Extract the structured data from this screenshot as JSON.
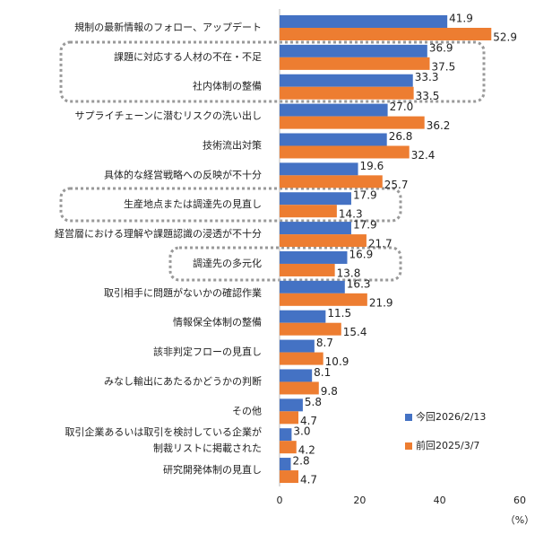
{
  "chart_data": {
    "type": "bar",
    "orientation": "horizontal",
    "categories": [
      "規制の最新情報のフォロー、アップデート",
      "課題に対応する人材の不在・不足",
      "社内体制の整備",
      "サプライチェーンに潜むリスクの洗い出し",
      "技術流出対策",
      "具体的な経営戦略への反映が不十分",
      "生産地点または調達先の見直し",
      "経営層における理解や課題認識の浸透が不十分",
      "調達先の多元化",
      "取引相手に問題がないかの確認作業",
      "情報保全体制の整備",
      "該非判定フローの見直し",
      "みなし輸出にあたるかどうかの判断",
      "その他",
      "取引企業あるいは取引を検討している企業が\n制裁リストに掲載された",
      "研究開発体制の見直し"
    ],
    "series": [
      {
        "name": "今回2026/2/13",
        "color": "#4472c4",
        "values": [
          41.9,
          36.9,
          33.3,
          27.0,
          26.8,
          19.6,
          17.9,
          17.9,
          16.9,
          16.3,
          11.5,
          8.7,
          8.1,
          5.8,
          3.0,
          2.8
        ],
        "value_labels": [
          "41.9",
          "36.9",
          "33.3",
          "27.0",
          "26.8",
          "19.6",
          "17.9",
          "17.9",
          "16.9",
          "16.3",
          "11.5",
          "8.7",
          "8.1",
          "5.8",
          "3.0",
          "2.8"
        ]
      },
      {
        "name": "前回2025/3/7",
        "color": "#ed7d31",
        "values": [
          52.9,
          37.5,
          33.5,
          36.2,
          32.4,
          25.7,
          14.3,
          21.7,
          13.8,
          21.9,
          15.4,
          10.9,
          9.8,
          4.7,
          4.2,
          4.7
        ],
        "value_labels": [
          "52.9",
          "37.5",
          "33.5",
          "36.2",
          "32.4",
          "25.7",
          "14.3",
          "21.7",
          "13.8",
          "21.9",
          "15.4",
          "10.9",
          "9.8",
          "4.7",
          "4.2",
          "4.7"
        ]
      }
    ],
    "xlim": [
      0,
      60
    ],
    "xticks": [
      0,
      20,
      40,
      60
    ],
    "x_unit": "（%）",
    "legend": "lower right"
  }
}
